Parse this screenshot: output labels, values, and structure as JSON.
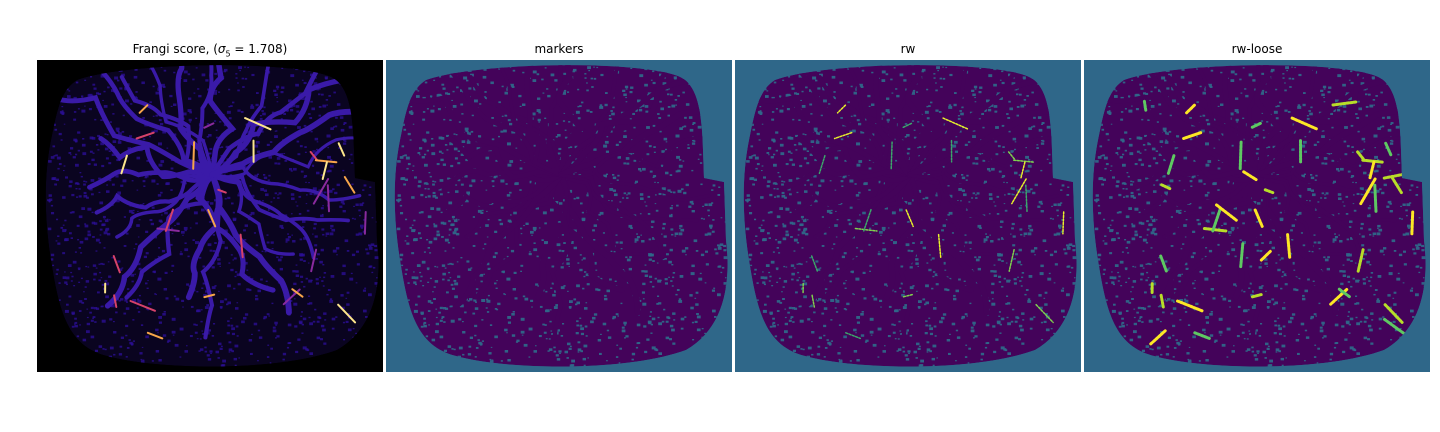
{
  "panels": [
    {
      "title_prefix": "Frangi score, (",
      "sigma_symbol": "σ",
      "sigma_sub": "5",
      "title_suffix": " = 1.708)",
      "background": "#000000",
      "vessel_color": "#2a0f94",
      "accent_colors": [
        "#d6426a",
        "#f7a54a",
        "#fde68c",
        "#8a2a9e"
      ]
    },
    {
      "title": "markers",
      "background": "#2f6789",
      "vessel_color": "#44035a",
      "accent_colors": []
    },
    {
      "title": "rw",
      "background": "#2f6789",
      "vessel_color": "#44035a",
      "accent_colors": [
        "#e7f22b",
        "#7fd24e",
        "#3ba86b"
      ]
    },
    {
      "title": "rw-loose",
      "background": "#2f6789",
      "vessel_color": "#44035a",
      "accent_colors": [
        "#fde725",
        "#b8de29",
        "#5ec962"
      ]
    }
  ]
}
